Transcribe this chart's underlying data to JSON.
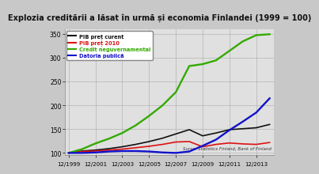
{
  "title": "Explozia creditării a lăsat în urmă și economia Finlandei (1999 = 100)",
  "title_fontsize": 7.0,
  "background_color": "#c8c8c8",
  "plot_background": "#e0e0e0",
  "ylim": [
    95,
    360
  ],
  "yticks": [
    100,
    150,
    200,
    250,
    300,
    350
  ],
  "source_text": "Surse: Statistics Finland, Bank of Finland",
  "legend_entries": [
    "PIB preț curent",
    "PIB preț 2010",
    "Credit neguvernamental",
    "Datoria publică"
  ],
  "legend_colors": [
    "#111111",
    "#dd1111",
    "#33aa00",
    "#1111cc"
  ],
  "xtick_years": [
    1999,
    2001,
    2003,
    2005,
    2007,
    2009,
    2011,
    2013
  ],
  "years": [
    1999,
    2000,
    2001,
    2002,
    2003,
    2004,
    2005,
    2006,
    2007,
    2008,
    2009,
    2010,
    2011,
    2012,
    2013,
    2014
  ],
  "pib_curent": [
    100,
    104,
    106,
    109,
    113,
    118,
    124,
    131,
    140,
    149,
    136,
    142,
    149,
    151,
    153,
    160
  ],
  "pib_2010": [
    100,
    103,
    104,
    106,
    108,
    111,
    114,
    118,
    123,
    124,
    113,
    118,
    121,
    119,
    118,
    122
  ],
  "credit_neguv": [
    100,
    108,
    120,
    130,
    142,
    158,
    178,
    200,
    228,
    283,
    287,
    295,
    315,
    335,
    348,
    350
  ],
  "datoria_publica": [
    100,
    100,
    101,
    103,
    104,
    104,
    103,
    101,
    100,
    103,
    115,
    128,
    148,
    166,
    185,
    215
  ]
}
